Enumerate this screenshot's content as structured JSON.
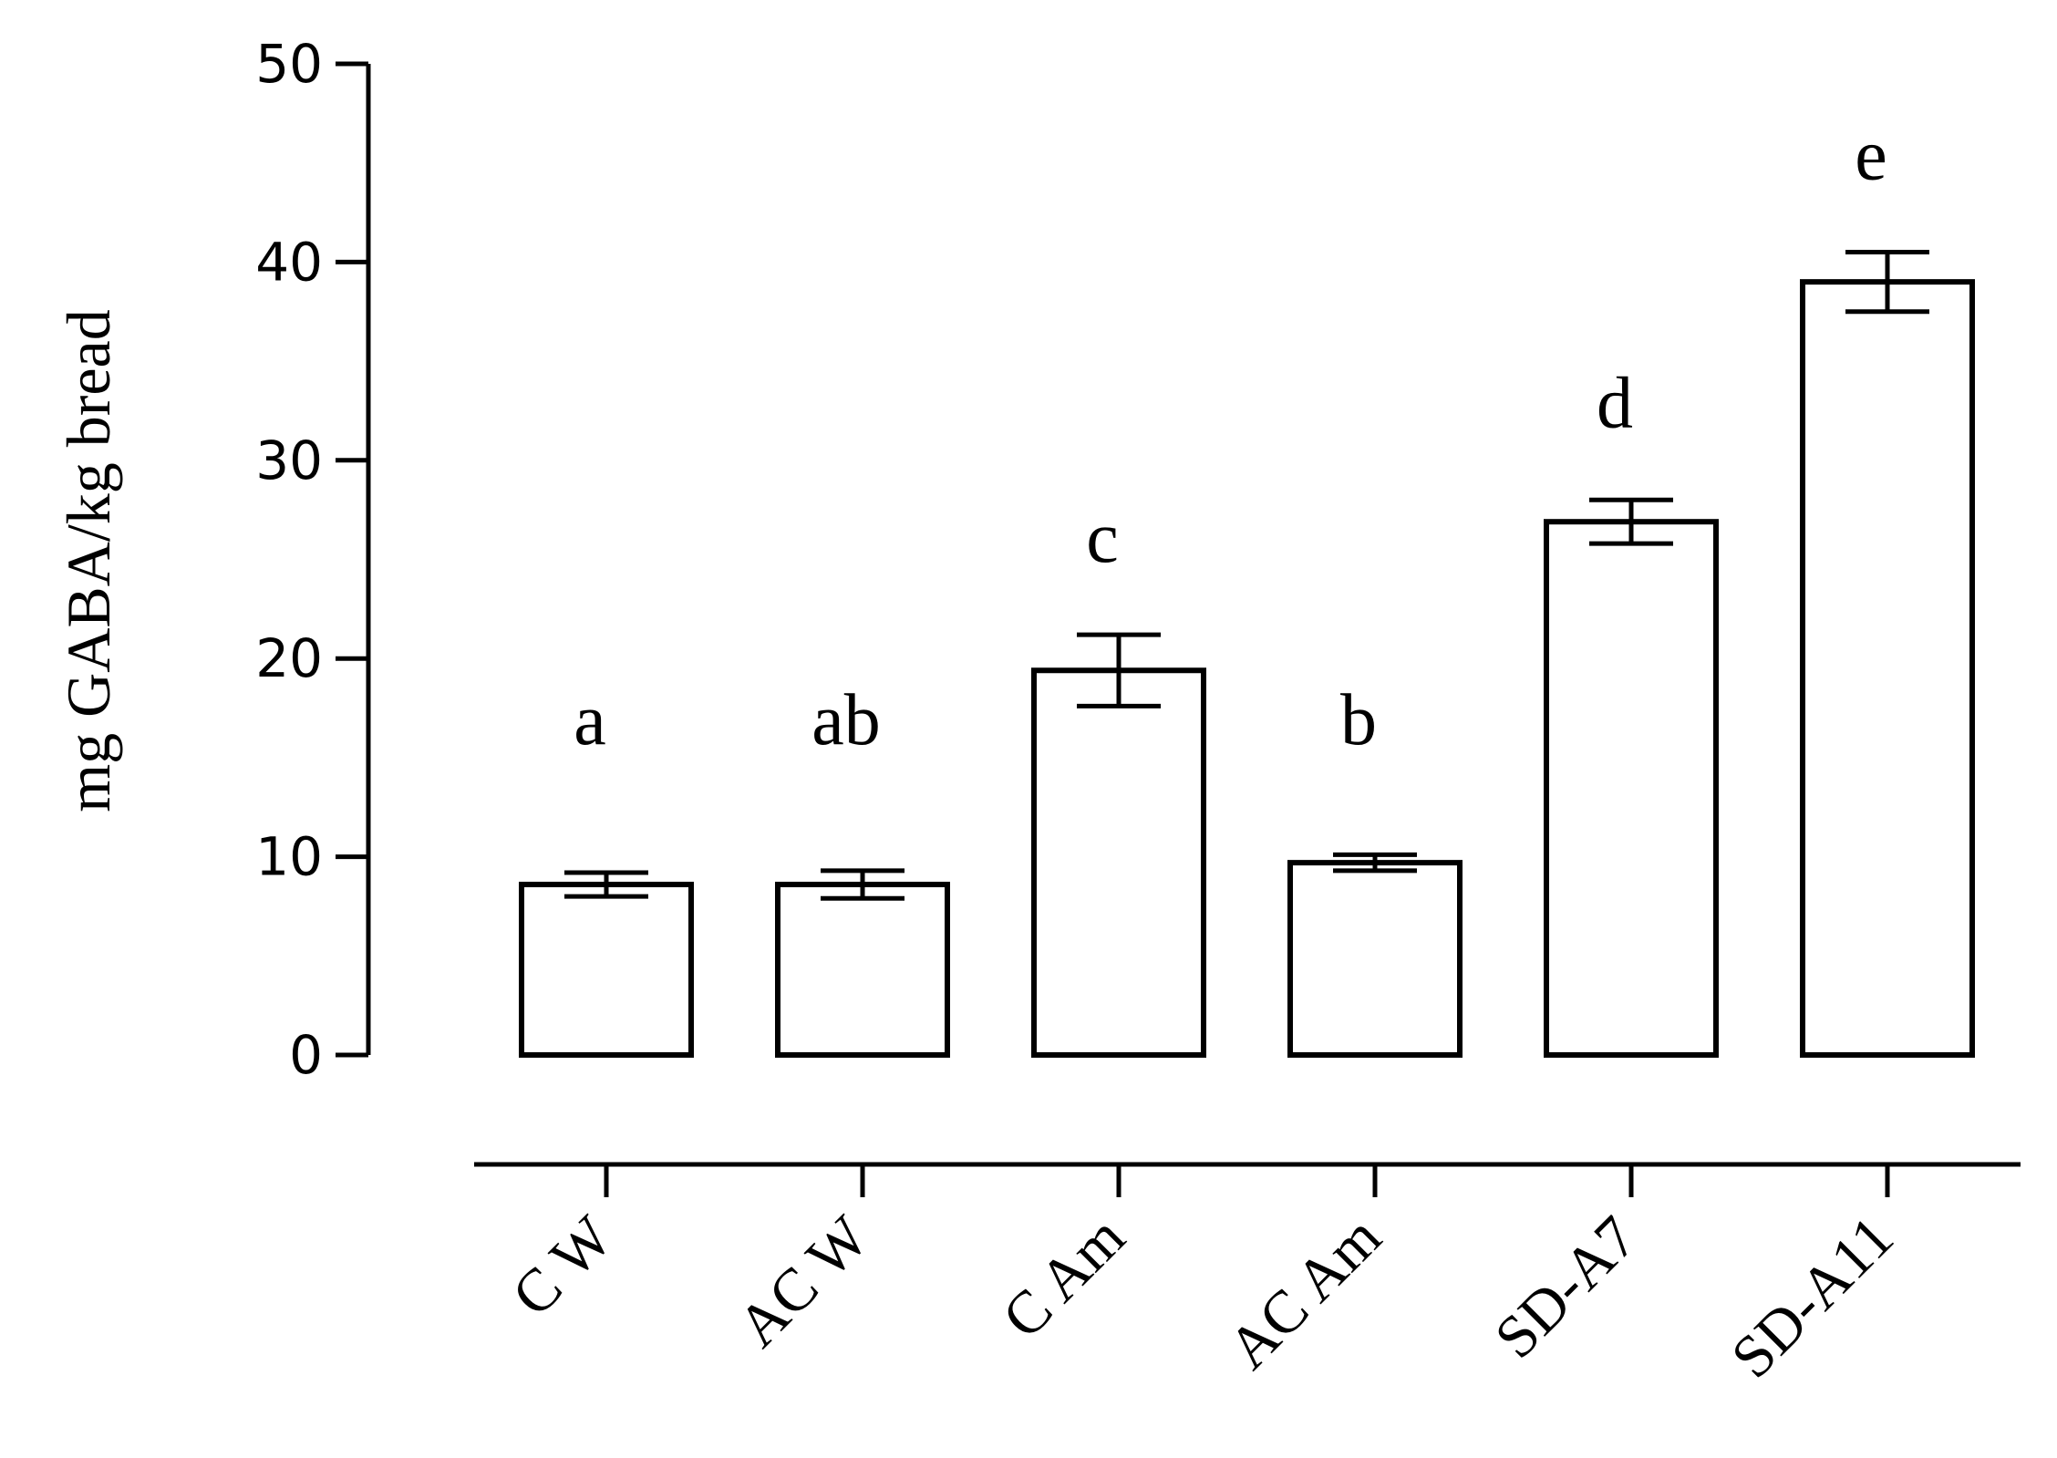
{
  "chart_data": {
    "type": "bar",
    "title": "",
    "xlabel": "",
    "ylabel": "mg GABA/kg bread",
    "ylim": [
      0,
      50
    ],
    "yticks": [
      0,
      10,
      20,
      30,
      40,
      50
    ],
    "grid": false,
    "legend": "none",
    "categories": [
      "C W",
      "AC W",
      "C Am",
      "AC Am",
      "SD-A7",
      "SD-A11"
    ],
    "values": [
      8.6,
      8.6,
      19.4,
      9.7,
      26.9,
      39.0
    ],
    "error": [
      0.6,
      0.7,
      1.8,
      0.4,
      1.1,
      1.5
    ],
    "significance_letters": [
      "a",
      "ab",
      "c",
      "b",
      "d",
      "e"
    ],
    "colors": {
      "bar_fill": "#ffffff",
      "bar_stroke": "#000000"
    }
  }
}
